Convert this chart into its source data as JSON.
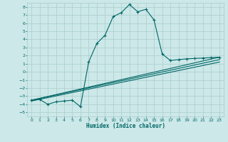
{
  "xlabel": "Humidex (Indice chaleur)",
  "bg_color": "#cce8e8",
  "line_color": "#006666",
  "grid_color": "#aacccc",
  "xlim": [
    -0.5,
    23.5
  ],
  "ylim": [
    -5.5,
    8.5
  ],
  "yticks": [
    -5,
    -4,
    -3,
    -2,
    -1,
    0,
    1,
    2,
    3,
    4,
    5,
    6,
    7,
    8
  ],
  "xticks": [
    0,
    1,
    2,
    3,
    4,
    5,
    6,
    7,
    8,
    9,
    10,
    11,
    12,
    13,
    14,
    15,
    16,
    17,
    18,
    19,
    20,
    21,
    22,
    23
  ],
  "curve1_x": [
    0,
    1,
    2,
    3,
    4,
    5,
    6,
    7,
    8,
    9,
    10,
    11,
    12,
    13,
    14,
    15,
    16,
    17,
    18,
    19,
    20,
    21,
    22,
    23
  ],
  "curve1_y": [
    -3.5,
    -3.4,
    -4.0,
    -3.7,
    -3.6,
    -3.5,
    -4.3,
    1.2,
    3.5,
    4.5,
    6.8,
    7.3,
    8.3,
    7.4,
    7.7,
    6.4,
    2.2,
    1.4,
    1.5,
    1.6,
    1.65,
    1.7,
    1.75,
    1.8
  ],
  "curve2_x": [
    0,
    23
  ],
  "curve2_y": [
    -3.5,
    1.8
  ],
  "curve3_x": [
    0,
    23
  ],
  "curve3_y": [
    -3.5,
    1.5
  ],
  "curve4_x": [
    0,
    23
  ],
  "curve4_y": [
    -3.6,
    1.2
  ]
}
